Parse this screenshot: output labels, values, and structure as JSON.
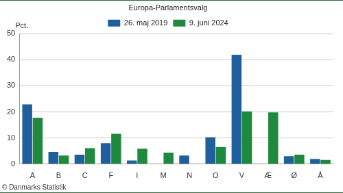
{
  "chart_data": {
    "type": "bar",
    "title": "Europa-Parlamentsvalg",
    "ylabel": "Pct.",
    "annotations": [
      "© Danmarks Statistik"
    ],
    "categories": [
      "A",
      "B",
      "C",
      "F",
      "I",
      "M",
      "N",
      "O",
      "V",
      "Æ",
      "Ø",
      "Å"
    ],
    "series": [
      {
        "name": "26. maj 2019",
        "color": "#1f5f9e",
        "values": [
          22.9,
          4.7,
          3.6,
          8.0,
          1.4,
          null,
          3.3,
          10.3,
          41.9,
          null,
          3.0,
          2.0
        ]
      },
      {
        "name": "9. juni 2024",
        "color": "#1f8a3f",
        "values": [
          17.8,
          3.3,
          6.1,
          11.6,
          5.9,
          4.4,
          null,
          6.6,
          20.2,
          19.8,
          3.6,
          1.6
        ]
      }
    ],
    "ylim": [
      0,
      50
    ],
    "yticks": [
      0,
      10,
      20,
      30,
      40,
      50
    ],
    "grid": true,
    "legend": "top"
  }
}
